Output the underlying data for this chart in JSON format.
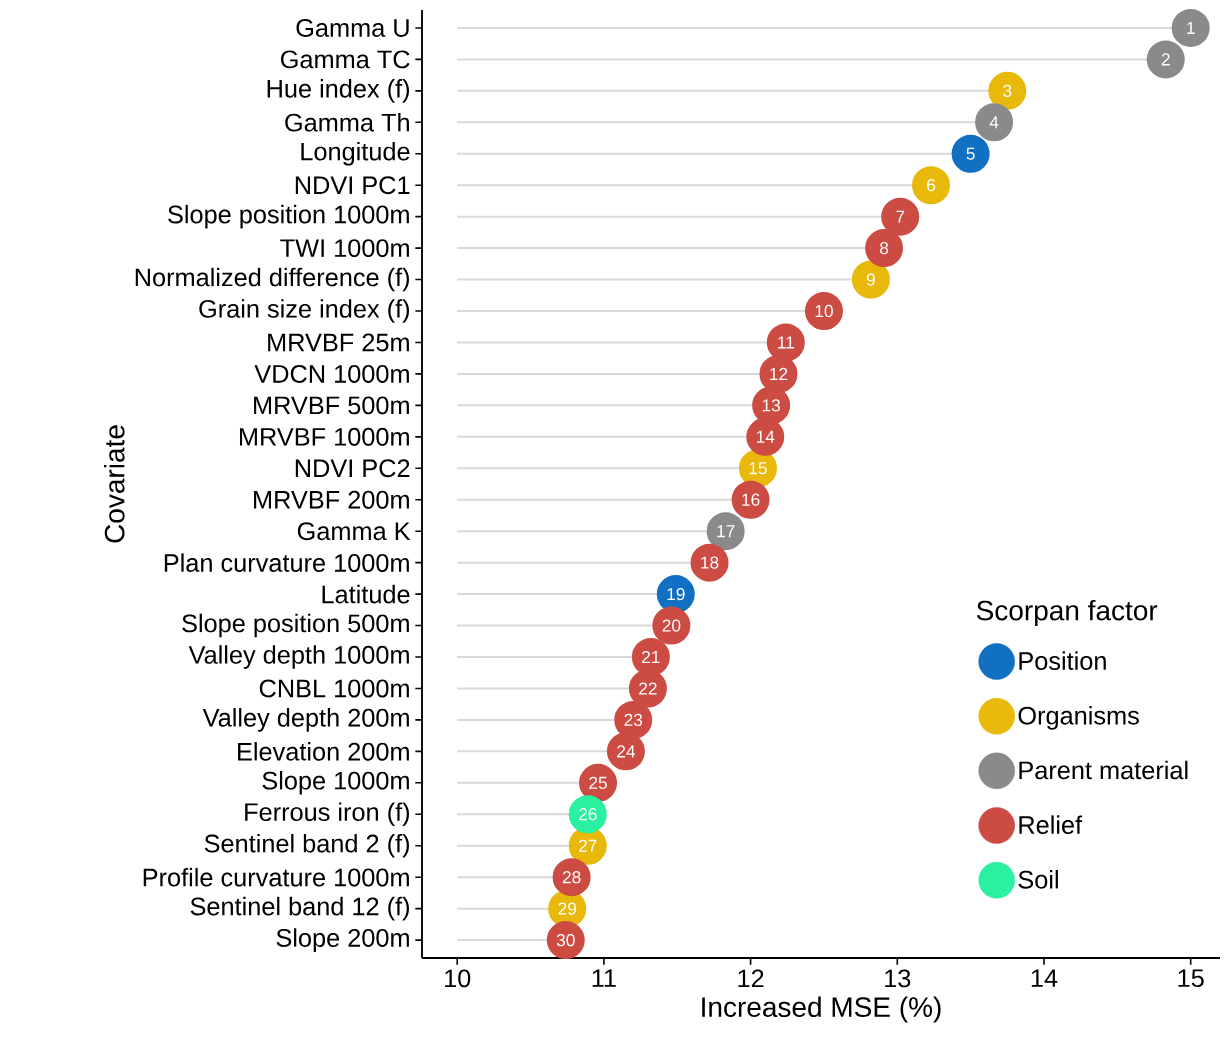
{
  "chart_data": {
    "type": "lollipop",
    "orientation": "horizontal",
    "xlabel": "Increased MSE (%)",
    "ylabel": "Covariate",
    "legend_title": "Scorpan factor",
    "legend": "bottom right",
    "marker": "circle",
    "categories": [
      "Gamma U",
      "Gamma TC",
      "Hue index (f)",
      "Gamma Th",
      "Longitude",
      "NDVI PC1",
      "Slope position 1000m",
      "TWI 1000m",
      "Normalized difference (f)",
      "Grain size index (f)",
      "MRVBF 25m",
      "VDCN 1000m",
      "MRVBF 500m",
      "MRVBF 1000m",
      "NDVI PC2",
      "MRVBF 200m",
      "Gamma K",
      "Plan curvature 1000m",
      "Latitude",
      "Slope position 500m",
      "Valley depth 1000m",
      "CNBL 1000m",
      "Valley depth 200m",
      "Elevation 200m",
      "Slope 1000m",
      "Ferrous iron (f)",
      "Sentinel band 2 (f)",
      "Profile curvature 1000m",
      "Sentinel band 12 (f)",
      "Slope 200m"
    ],
    "xlim": [
      9.76,
      15.2
    ],
    "xticks": [
      10,
      11,
      12,
      13,
      14,
      15
    ],
    "series": [
      {
        "name": "Position",
        "color": "#1170c2",
        "values": [
          null,
          null,
          null,
          null,
          13.5,
          null,
          null,
          null,
          null,
          null,
          null,
          null,
          null,
          null,
          null,
          null,
          null,
          null,
          11.49,
          null,
          null,
          null,
          null,
          null,
          null,
          null,
          null,
          null,
          null,
          null
        ]
      },
      {
        "name": "Organisms",
        "color": "#e8b90a",
        "values": [
          null,
          null,
          13.75,
          null,
          null,
          13.23,
          null,
          null,
          12.82,
          null,
          null,
          null,
          null,
          null,
          12.05,
          null,
          null,
          null,
          null,
          null,
          null,
          null,
          null,
          null,
          null,
          null,
          10.89,
          null,
          10.75,
          null
        ]
      },
      {
        "name": "Parent material",
        "color": "#8a8a8a",
        "values": [
          15.0,
          14.83,
          null,
          13.66,
          null,
          null,
          null,
          null,
          null,
          null,
          null,
          null,
          null,
          null,
          null,
          null,
          11.83,
          null,
          null,
          null,
          null,
          null,
          null,
          null,
          null,
          null,
          null,
          null,
          null,
          null
        ]
      },
      {
        "name": "Relief",
        "color": "#cc4c44",
        "values": [
          null,
          null,
          null,
          null,
          null,
          null,
          13.02,
          12.91,
          null,
          12.5,
          12.24,
          12.19,
          12.14,
          12.1,
          null,
          12.0,
          null,
          11.72,
          null,
          11.46,
          11.32,
          11.3,
          11.2,
          11.15,
          10.96,
          null,
          null,
          10.78,
          null,
          10.74
        ]
      },
      {
        "name": "Soil",
        "color": "#2af0a0",
        "values": [
          null,
          null,
          null,
          null,
          null,
          null,
          null,
          null,
          null,
          null,
          null,
          null,
          null,
          null,
          null,
          null,
          null,
          null,
          null,
          null,
          null,
          null,
          null,
          null,
          null,
          10.89,
          null,
          null,
          null,
          null
        ]
      }
    ],
    "annotations": [
      {
        "text": "1",
        "x": 15.0,
        "y": "Gamma U"
      },
      {
        "text": "2",
        "x": 14.83,
        "y": "Gamma TC"
      },
      {
        "text": "3",
        "x": 13.75,
        "y": "Hue index (f)"
      },
      {
        "text": "4",
        "x": 13.66,
        "y": "Gamma Th"
      },
      {
        "text": "5",
        "x": 13.5,
        "y": "Longitude"
      },
      {
        "text": "6",
        "x": 13.23,
        "y": "NDVI PC1"
      },
      {
        "text": "7",
        "x": 13.02,
        "y": "Slope position 1000m"
      },
      {
        "text": "8",
        "x": 12.91,
        "y": "TWI 1000m"
      },
      {
        "text": "9",
        "x": 12.82,
        "y": "Normalized difference (f)"
      },
      {
        "text": "10",
        "x": 12.5,
        "y": "Grain size index (f)"
      },
      {
        "text": "11",
        "x": 12.24,
        "y": "MRVBF 25m"
      },
      {
        "text": "12",
        "x": 12.19,
        "y": "VDCN 1000m"
      },
      {
        "text": "13",
        "x": 12.14,
        "y": "MRVBF 500m"
      },
      {
        "text": "14",
        "x": 12.1,
        "y": "MRVBF 1000m"
      },
      {
        "text": "15",
        "x": 12.05,
        "y": "NDVI PC2"
      },
      {
        "text": "16",
        "x": 12.0,
        "y": "MRVBF 200m"
      },
      {
        "text": "17",
        "x": 11.83,
        "y": "Gamma K"
      },
      {
        "text": "18",
        "x": 11.72,
        "y": "Plan curvature 1000m"
      },
      {
        "text": "19",
        "x": 11.49,
        "y": "Latitude"
      },
      {
        "text": "20",
        "x": 11.46,
        "y": "Slope position 500m"
      },
      {
        "text": "21",
        "x": 11.32,
        "y": "Valley depth 1000m"
      },
      {
        "text": "22",
        "x": 11.3,
        "y": "CNBL 1000m"
      },
      {
        "text": "23",
        "x": 11.2,
        "y": "Valley depth 200m"
      },
      {
        "text": "24",
        "x": 11.15,
        "y": "Elevation 200m"
      },
      {
        "text": "25",
        "x": 10.96,
        "y": "Slope 1000m"
      },
      {
        "text": "26",
        "x": 10.89,
        "y": "Ferrous iron (f)"
      },
      {
        "text": "27",
        "x": 10.89,
        "y": "Sentinel band 2 (f)"
      },
      {
        "text": "28",
        "x": 10.78,
        "y": "Profile curvature 1000m"
      },
      {
        "text": "29",
        "x": 10.75,
        "y": "Sentinel band 12 (f)"
      },
      {
        "text": "30",
        "x": 10.74,
        "y": "Slope 200m"
      }
    ]
  }
}
